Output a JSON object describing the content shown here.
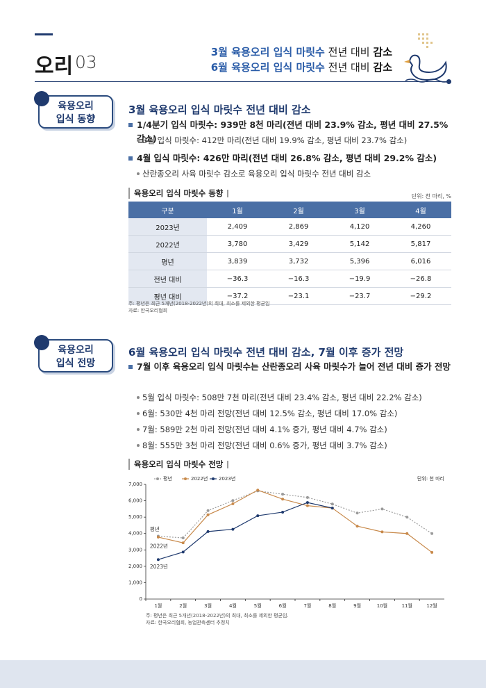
{
  "header": {
    "section": "오리",
    "number": "03",
    "lines": [
      [
        "3월 육용오리 입식 마릿수",
        "전년 대비",
        "감소"
      ],
      [
        "6월 육용오리 입식 마릿수",
        "전년 대비",
        "감소"
      ]
    ]
  },
  "section1": {
    "badge": [
      "육용오리",
      "입식 동향"
    ],
    "title": "3월 육용오리 입식 마릿수 전년 대비 감소",
    "bullets": [
      {
        "text": "1/4분기 입식 마릿수: 939만 8천 마리(전년 대비 23.9% 감소, 평년 대비 27.5% 감소)",
        "sub": [
          "3월 입식 마릿수: 412만 마리(전년 대비 19.9% 감소, 평년 대비 23.7% 감소)"
        ]
      },
      {
        "text": "4월 입식 마릿수: 426만 마리(전년 대비 26.8% 감소, 평년 대비 29.2% 감소)",
        "sub": [
          "산란종오리 사육 마릿수 감소로 육용오리 입식 마릿수 전년 대비 감소"
        ]
      }
    ],
    "table": {
      "title": "육용오리 입식 마릿수 동향",
      "unit": "단위: 천 마리, %",
      "header": [
        "구분",
        "1월",
        "2월",
        "3월",
        "4월"
      ],
      "rows": [
        [
          "2023년",
          "2,409",
          "2,869",
          "4,120",
          "4,260"
        ],
        [
          "2022년",
          "3,780",
          "3,429",
          "5,142",
          "5,817"
        ],
        [
          "평년",
          "3,839",
          "3,732",
          "5,396",
          "6,016"
        ],
        [
          "전년 대비",
          "−36.3",
          "−16.3",
          "−19.9",
          "−26.8"
        ],
        [
          "평년 대비",
          "−37.2",
          "−23.1",
          "−23.7",
          "−29.2"
        ]
      ],
      "notes": [
        "주: 평년은 최근 5개년(2018-2022년)의 최대, 최소를 제외한 평균임",
        "자료: 한국오리협회"
      ]
    }
  },
  "section2": {
    "badge": [
      "육용오리",
      "입식 전망"
    ],
    "title": "6월 육용오리 입식 마릿수 전년 대비 감소, 7월 이후 증가 전망",
    "bullet": "7월 이후 육용오리 입식 마릿수는 산란종오리 사육 마릿수가 늘어 전년 대비 증가 전망",
    "sub": [
      "5월 입식 마릿수: 508만 7천 마리(전년 대비 23.4% 감소, 평년 대비 22.2% 감소)",
      "6월: 530만 4천 마리 전망(전년 대비 12.5% 감소, 평년 대비 17.0% 감소)",
      "7월: 589만 2천 마리 전망(전년 대비 4.1% 증가, 평년 대비 4.7% 감소)",
      "8월: 555만 3천 마리 전망(전년 대비 0.6% 증가, 평년 대비 3.7% 감소)"
    ],
    "chart_title": "육용오리 입식 마릿수 전망",
    "notes": [
      "주: 평년은 최근 5개년(2018-2022년)의 최대, 최소를 제외한 평균임.",
      "자료: 한국오리협회, 농업관측센터 추정치"
    ]
  },
  "chart_data": {
    "type": "line",
    "unit": "단위: 천 마리",
    "categories": [
      "1월",
      "2월",
      "3월",
      "4월",
      "5월",
      "6월",
      "7월",
      "8월",
      "9월",
      "10월",
      "11월",
      "12월"
    ],
    "series": [
      {
        "name": "평년",
        "color": "#9a9a9a",
        "dashed": true,
        "values": [
          3839,
          3732,
          5396,
          6016,
          6600,
          6400,
          6200,
          5800,
          5250,
          5500,
          5000,
          4000
        ]
      },
      {
        "name": "2022년",
        "color": "#c8894a",
        "values": [
          3780,
          3429,
          5142,
          5817,
          6650,
          6100,
          5700,
          5550,
          4450,
          4100,
          4000,
          2850
        ]
      },
      {
        "name": "2023년",
        "color": "#1f3a6e",
        "values": [
          2409,
          2869,
          4120,
          4260,
          5087,
          5304,
          5892,
          5553,
          null,
          null,
          null,
          null
        ]
      }
    ],
    "annotations": [
      "평년",
      "2022년",
      "2023년"
    ],
    "ylim": [
      0,
      7000
    ],
    "yticks": [
      0,
      {
        "value": 1000,
        "label": "1,000"
      },
      {
        "value": 2000,
        "label": "2,000"
      },
      {
        "value": 3000,
        "label": "3,000"
      },
      {
        "value": 4000,
        "label": "4,000"
      },
      {
        "value": 5000,
        "label": "5,000"
      },
      {
        "value": 6000,
        "label": "6,000"
      },
      {
        "value": 7000,
        "label": "7,000"
      }
    ],
    "legend": "top-left"
  }
}
